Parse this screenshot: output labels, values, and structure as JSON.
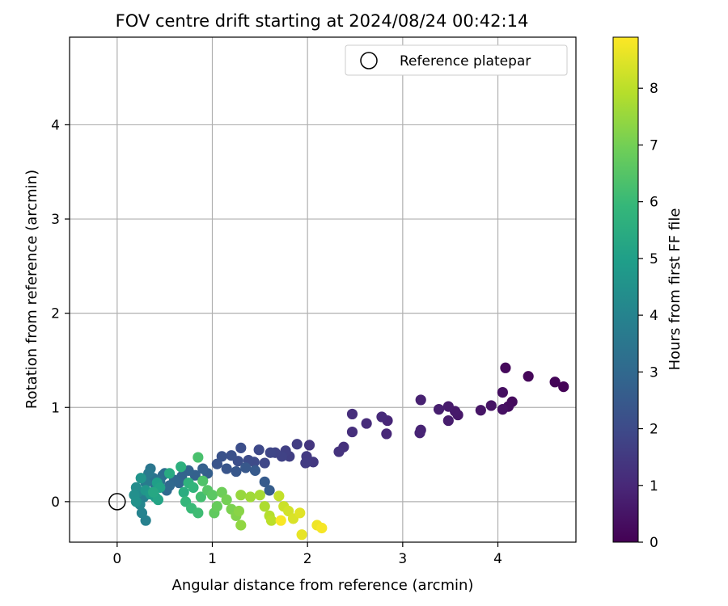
{
  "chart_data": {
    "type": "scatter",
    "title": "FOV centre drift starting at 2024/08/24 00:42:14",
    "xlabel": "Angular distance from reference (arcmin)",
    "ylabel": "Rotation from reference (arcmin)",
    "xlim": [
      -0.5,
      4.82
    ],
    "ylim": [
      -0.43,
      4.93
    ],
    "xticks": [
      0,
      1,
      2,
      3,
      4
    ],
    "yticks": [
      0,
      1,
      2,
      3,
      4
    ],
    "grid": true,
    "legend": {
      "placement": "top-right",
      "entries": [
        "Reference platepar"
      ]
    },
    "reference_point": {
      "x": 0,
      "y": 0,
      "label": "Reference platepar"
    },
    "colorbar": {
      "label": "Hours from first FF file",
      "range": [
        0,
        8.9
      ],
      "ticks": [
        0,
        1,
        2,
        3,
        4,
        5,
        6,
        7,
        8
      ],
      "colormap": "viridis"
    },
    "series": [
      {
        "points": [
          {
            "x": 4.69,
            "y": 1.22,
            "c": 0.05
          },
          {
            "x": 4.6,
            "y": 1.27,
            "c": 0.1
          },
          {
            "x": 4.32,
            "y": 1.33,
            "c": 0.15
          },
          {
            "x": 4.08,
            "y": 1.42,
            "c": 0.2
          },
          {
            "x": 4.15,
            "y": 1.06,
            "c": 0.25
          },
          {
            "x": 4.11,
            "y": 1.01,
            "c": 0.3
          },
          {
            "x": 4.05,
            "y": 1.16,
            "c": 0.35
          },
          {
            "x": 4.05,
            "y": 0.98,
            "c": 0.4
          },
          {
            "x": 3.93,
            "y": 1.02,
            "c": 0.45
          },
          {
            "x": 3.82,
            "y": 0.97,
            "c": 0.5
          },
          {
            "x": 3.58,
            "y": 0.92,
            "c": 0.55
          },
          {
            "x": 3.55,
            "y": 0.96,
            "c": 0.6
          },
          {
            "x": 3.48,
            "y": 1.01,
            "c": 0.65
          },
          {
            "x": 3.48,
            "y": 0.86,
            "c": 0.7
          },
          {
            "x": 3.38,
            "y": 0.98,
            "c": 0.75
          },
          {
            "x": 3.19,
            "y": 1.08,
            "c": 0.8
          },
          {
            "x": 3.19,
            "y": 0.76,
            "c": 0.85
          },
          {
            "x": 3.18,
            "y": 0.73,
            "c": 0.9
          },
          {
            "x": 2.84,
            "y": 0.86,
            "c": 0.95
          },
          {
            "x": 2.83,
            "y": 0.72,
            "c": 1.0
          },
          {
            "x": 2.78,
            "y": 0.9,
            "c": 1.05
          },
          {
            "x": 2.62,
            "y": 0.83,
            "c": 1.1
          },
          {
            "x": 2.47,
            "y": 0.93,
            "c": 1.15
          },
          {
            "x": 2.47,
            "y": 0.74,
            "c": 1.2
          },
          {
            "x": 2.38,
            "y": 0.58,
            "c": 1.25
          },
          {
            "x": 2.33,
            "y": 0.53,
            "c": 1.3
          },
          {
            "x": 2.02,
            "y": 0.6,
            "c": 1.4
          },
          {
            "x": 2.06,
            "y": 0.42,
            "c": 1.45
          },
          {
            "x": 1.99,
            "y": 0.48,
            "c": 1.5
          },
          {
            "x": 1.98,
            "y": 0.41,
            "c": 1.55
          },
          {
            "x": 1.89,
            "y": 0.61,
            "c": 1.6
          },
          {
            "x": 1.81,
            "y": 0.48,
            "c": 1.65
          },
          {
            "x": 1.77,
            "y": 0.54,
            "c": 1.7
          },
          {
            "x": 1.73,
            "y": 0.48,
            "c": 1.75
          },
          {
            "x": 1.66,
            "y": 0.52,
            "c": 1.8
          },
          {
            "x": 1.61,
            "y": 0.52,
            "c": 1.85
          },
          {
            "x": 1.55,
            "y": 0.41,
            "c": 1.9
          },
          {
            "x": 1.49,
            "y": 0.55,
            "c": 1.95
          },
          {
            "x": 1.44,
            "y": 0.42,
            "c": 2.0
          },
          {
            "x": 1.38,
            "y": 0.44,
            "c": 2.05
          },
          {
            "x": 1.3,
            "y": 0.57,
            "c": 2.1
          },
          {
            "x": 1.27,
            "y": 0.43,
            "c": 2.15
          },
          {
            "x": 1.2,
            "y": 0.49,
            "c": 2.2
          },
          {
            "x": 1.1,
            "y": 0.48,
            "c": 2.25
          },
          {
            "x": 1.05,
            "y": 0.4,
            "c": 2.3
          },
          {
            "x": 1.15,
            "y": 0.35,
            "c": 2.35
          },
          {
            "x": 1.25,
            "y": 0.32,
            "c": 2.4
          },
          {
            "x": 1.35,
            "y": 0.36,
            "c": 2.45
          },
          {
            "x": 1.45,
            "y": 0.33,
            "c": 2.5
          },
          {
            "x": 1.55,
            "y": 0.21,
            "c": 2.55
          },
          {
            "x": 1.6,
            "y": 0.12,
            "c": 2.6
          },
          {
            "x": 0.95,
            "y": 0.3,
            "c": 2.65
          },
          {
            "x": 0.9,
            "y": 0.35,
            "c": 2.7
          },
          {
            "x": 0.82,
            "y": 0.28,
            "c": 2.75
          },
          {
            "x": 0.75,
            "y": 0.33,
            "c": 2.8
          },
          {
            "x": 0.68,
            "y": 0.27,
            "c": 2.85
          },
          {
            "x": 0.65,
            "y": 0.2,
            "c": 2.9
          },
          {
            "x": 0.6,
            "y": 0.23,
            "c": 2.95
          },
          {
            "x": 0.55,
            "y": 0.17,
            "c": 3.0
          },
          {
            "x": 0.52,
            "y": 0.12,
            "c": 3.05
          },
          {
            "x": 0.48,
            "y": 0.28,
            "c": 3.1
          },
          {
            "x": 0.5,
            "y": 0.3,
            "c": 3.2
          },
          {
            "x": 0.45,
            "y": 0.22,
            "c": 3.3
          },
          {
            "x": 0.4,
            "y": 0.18,
            "c": 3.35
          },
          {
            "x": 0.38,
            "y": 0.25,
            "c": 3.4
          },
          {
            "x": 0.35,
            "y": 0.35,
            "c": 3.5
          },
          {
            "x": 0.33,
            "y": 0.3,
            "c": 3.6
          },
          {
            "x": 0.3,
            "y": 0.2,
            "c": 3.7
          },
          {
            "x": 0.28,
            "y": 0.05,
            "c": 3.8
          },
          {
            "x": 0.3,
            "y": -0.2,
            "c": 3.9
          },
          {
            "x": 0.26,
            "y": -0.12,
            "c": 4.0
          },
          {
            "x": 0.24,
            "y": -0.03,
            "c": 4.1
          },
          {
            "x": 0.22,
            "y": 0.1,
            "c": 4.2
          },
          {
            "x": 0.2,
            "y": 0.15,
            "c": 4.3
          },
          {
            "x": 0.18,
            "y": 0.07,
            "c": 4.4
          },
          {
            "x": 0.2,
            "y": 0.0,
            "c": 4.5
          },
          {
            "x": 0.25,
            "y": 0.25,
            "c": 4.6
          },
          {
            "x": 0.3,
            "y": 0.12,
            "c": 4.7
          },
          {
            "x": 0.35,
            "y": 0.08,
            "c": 4.8
          },
          {
            "x": 0.4,
            "y": 0.05,
            "c": 4.9
          },
          {
            "x": 0.42,
            "y": 0.2,
            "c": 5.0
          },
          {
            "x": 0.45,
            "y": 0.15,
            "c": 5.1
          },
          {
            "x": 0.43,
            "y": 0.02,
            "c": 5.2
          },
          {
            "x": 0.38,
            "y": 0.1,
            "c": 5.3
          },
          {
            "x": 0.55,
            "y": 0.3,
            "c": 5.4
          },
          {
            "x": 0.7,
            "y": 0.1,
            "c": 5.5
          },
          {
            "x": 0.67,
            "y": 0.37,
            "c": 5.6
          },
          {
            "x": 0.75,
            "y": 0.2,
            "c": 5.7
          },
          {
            "x": 0.8,
            "y": 0.15,
            "c": 5.8
          },
          {
            "x": 0.72,
            "y": 0.0,
            "c": 5.9
          },
          {
            "x": 0.78,
            "y": -0.07,
            "c": 6.0
          },
          {
            "x": 0.85,
            "y": -0.12,
            "c": 6.1
          },
          {
            "x": 0.88,
            "y": 0.05,
            "c": 6.2
          },
          {
            "x": 0.85,
            "y": 0.47,
            "c": 6.3
          },
          {
            "x": 0.9,
            "y": 0.22,
            "c": 6.4
          },
          {
            "x": 0.95,
            "y": 0.12,
            "c": 6.5
          },
          {
            "x": 1.0,
            "y": 0.07,
            "c": 6.6
          },
          {
            "x": 1.02,
            "y": -0.12,
            "c": 6.7
          },
          {
            "x": 1.05,
            "y": -0.05,
            "c": 6.8
          },
          {
            "x": 1.1,
            "y": 0.1,
            "c": 6.9
          },
          {
            "x": 1.15,
            "y": 0.02,
            "c": 7.0
          },
          {
            "x": 1.2,
            "y": -0.08,
            "c": 7.1
          },
          {
            "x": 1.25,
            "y": -0.15,
            "c": 7.2
          },
          {
            "x": 1.28,
            "y": -0.1,
            "c": 7.3
          },
          {
            "x": 1.3,
            "y": -0.25,
            "c": 7.4
          },
          {
            "x": 1.3,
            "y": 0.07,
            "c": 7.5
          },
          {
            "x": 1.4,
            "y": 0.05,
            "c": 7.6
          },
          {
            "x": 1.5,
            "y": 0.07,
            "c": 7.7
          },
          {
            "x": 1.55,
            "y": -0.05,
            "c": 7.8
          },
          {
            "x": 1.6,
            "y": -0.15,
            "c": 7.9
          },
          {
            "x": 1.62,
            "y": -0.2,
            "c": 8.0
          },
          {
            "x": 1.7,
            "y": 0.06,
            "c": 8.1
          },
          {
            "x": 1.75,
            "y": -0.05,
            "c": 8.2
          },
          {
            "x": 1.8,
            "y": -0.1,
            "c": 8.3
          },
          {
            "x": 1.85,
            "y": -0.18,
            "c": 8.4
          },
          {
            "x": 1.92,
            "y": -0.12,
            "c": 8.5
          },
          {
            "x": 1.94,
            "y": -0.35,
            "c": 8.6
          },
          {
            "x": 2.1,
            "y": -0.25,
            "c": 8.7
          },
          {
            "x": 2.15,
            "y": -0.28,
            "c": 8.8
          },
          {
            "x": 1.72,
            "y": -0.2,
            "c": 8.85
          }
        ]
      }
    ]
  }
}
